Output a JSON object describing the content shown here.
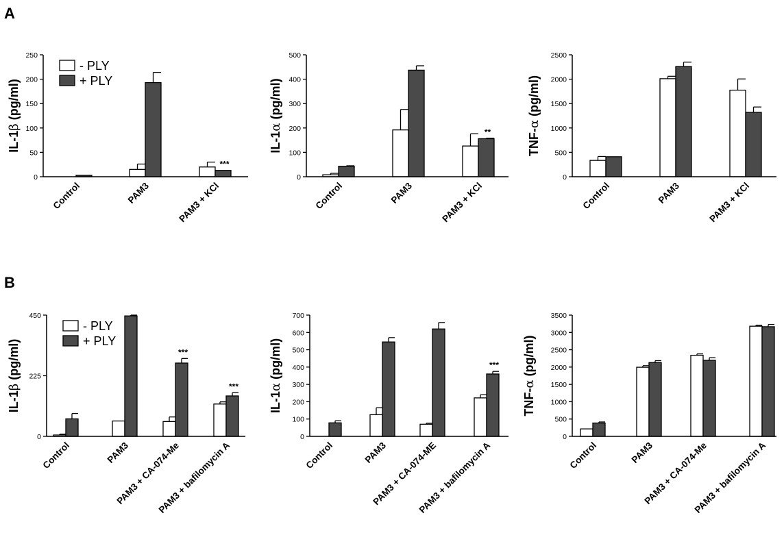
{
  "figure": {
    "panel_letters": [
      "A",
      "B"
    ]
  },
  "colors": {
    "minus": "#ffffff",
    "plus": "#4a4a4a",
    "stroke": "#000000"
  },
  "chart_data": [
    {
      "panel": "A",
      "type": "bar",
      "ylabel_prefix": "IL-1",
      "ylabel_greek": "β",
      "ylabel_suffix": " (pg/ml)",
      "ylim": [
        0,
        250
      ],
      "yticks": [
        "0",
        "50",
        "100",
        "150",
        "200",
        "250"
      ],
      "categories": [
        "Control",
        "PAM3",
        "PAM3 + KCl"
      ],
      "series": [
        {
          "name": "- PLY",
          "values": [
            0,
            15,
            20
          ],
          "errors": [
            0,
            11,
            10
          ]
        },
        {
          "name": "+ PLY",
          "values": [
            3,
            193,
            13
          ],
          "errors": [
            0,
            21,
            0
          ]
        }
      ],
      "annotations": [
        {
          "category": 2,
          "series": 1,
          "text": "***"
        }
      ],
      "legend": "top-left"
    },
    {
      "panel": "A",
      "type": "bar",
      "ylabel_prefix": "IL-1",
      "ylabel_greek": "α",
      "ylabel_suffix": " (pg/ml)",
      "ylim": [
        0,
        500
      ],
      "yticks": [
        "0",
        "100",
        "200",
        "300",
        "400",
        "500"
      ],
      "categories": [
        "Control",
        "PAM3",
        "PAM3 + KCl"
      ],
      "series": [
        {
          "name": "- PLY",
          "values": [
            8,
            192,
            126
          ],
          "errors": [
            6,
            84,
            50
          ]
        },
        {
          "name": "+ PLY",
          "values": [
            43,
            437,
            156
          ],
          "errors": [
            2,
            18,
            2
          ]
        }
      ],
      "annotations": [
        {
          "category": 2,
          "series": 1,
          "text": "**"
        }
      ]
    },
    {
      "panel": "A",
      "type": "bar",
      "ylabel_prefix": "TNF-",
      "ylabel_greek": "α",
      "ylabel_suffix": " (pg/ml)",
      "ylim": [
        0,
        2500
      ],
      "yticks": [
        "0",
        "500",
        "1000",
        "1500",
        "2000",
        "2500"
      ],
      "categories": [
        "Control",
        "PAM3",
        "PAM3 + KCl"
      ],
      "series": [
        {
          "name": "- PLY",
          "values": [
            335,
            2010,
            1775
          ],
          "errors": [
            80,
            50,
            230
          ]
        },
        {
          "name": "+ PLY",
          "values": [
            410,
            2260,
            1320
          ],
          "errors": [
            0,
            90,
            110
          ]
        }
      ],
      "annotations": []
    },
    {
      "panel": "B",
      "type": "bar",
      "ylabel_prefix": "IL-1",
      "ylabel_greek": "β",
      "ylabel_suffix": " (pg/ml)",
      "ylim": [
        0,
        450
      ],
      "yticks": [
        "0",
        "225",
        "450"
      ],
      "categories": [
        "Control",
        "PAM3",
        "PAM3 + CA-074-Me",
        "PAM3 + bafilomycin A"
      ],
      "series": [
        {
          "name": "- PLY",
          "values": [
            5,
            57,
            55,
            120
          ],
          "errors": [
            3,
            0,
            17,
            8
          ]
        },
        {
          "name": "+ PLY",
          "values": [
            65,
            447,
            272,
            150
          ],
          "errors": [
            20,
            3,
            17,
            12
          ]
        }
      ],
      "annotations": [
        {
          "category": 2,
          "series": 1,
          "text": "***"
        },
        {
          "category": 3,
          "series": 1,
          "text": "***"
        }
      ],
      "legend": "top-left"
    },
    {
      "panel": "B",
      "type": "bar",
      "ylabel_prefix": "IL-1",
      "ylabel_greek": "α",
      "ylabel_suffix": " (pg/ml)",
      "ylim": [
        0,
        700
      ],
      "yticks": [
        "0",
        "100",
        "200",
        "300",
        "400",
        "500",
        "600",
        "700"
      ],
      "categories": [
        "Control",
        "PAM3",
        "PAM3 + CA-074-ME",
        "PAM3 + bafilomycin A"
      ],
      "series": [
        {
          "name": "- PLY",
          "values": [
            0,
            125,
            70,
            222
          ],
          "errors": [
            0,
            40,
            6,
            18
          ]
        },
        {
          "name": "+ PLY",
          "values": [
            78,
            545,
            620,
            360
          ],
          "errors": [
            12,
            25,
            37,
            15
          ]
        }
      ],
      "annotations": [
        {
          "category": 3,
          "series": 1,
          "text": "***"
        }
      ]
    },
    {
      "panel": "B",
      "type": "bar",
      "ylabel_prefix": "TNF-",
      "ylabel_greek": "α",
      "ylabel_suffix": " (pg/ml)",
      "ylim": [
        0,
        3500
      ],
      "yticks": [
        "0",
        "500",
        "1000",
        "1500",
        "2000",
        "2500",
        "3000",
        "3500"
      ],
      "categories": [
        "Control",
        "PAM3",
        "PAM3 + CA-074-Me",
        "PAM3 + bafilomycin A"
      ],
      "series": [
        {
          "name": "- PLY",
          "values": [
            215,
            1995,
            2340,
            3180
          ],
          "errors": [
            0,
            45,
            40,
            25
          ]
        },
        {
          "name": "+ PLY",
          "values": [
            385,
            2130,
            2195,
            3165
          ],
          "errors": [
            30,
            55,
            75,
            65
          ]
        }
      ],
      "annotations": []
    }
  ]
}
